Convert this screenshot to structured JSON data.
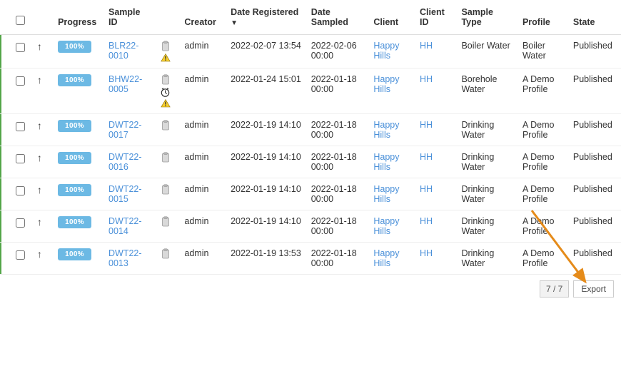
{
  "colors": {
    "accent_left": "#53a548",
    "link": "#4a90d9",
    "progress_bg": "#6cb9e4",
    "progress_fg": "#ffffff",
    "arrow_annotation": "#e58b1a",
    "border_light": "#eeeeee",
    "border_header": "#dddddd",
    "footer_box_bg": "#f2f2f2",
    "footer_box_border": "#cccccc"
  },
  "headers": {
    "progress": "Progress",
    "sample_id": "Sample ID",
    "creator": "Creator",
    "date_registered": "Date Registered",
    "sort_indicator": "▼",
    "date_sampled": "Date Sampled",
    "client": "Client",
    "client_id": "Client ID",
    "sample_type": "Sample Type",
    "profile": "Profile",
    "state": "State"
  },
  "rows": [
    {
      "progress": "100%",
      "sample_id": "BLR22-0010",
      "icons": [
        "clipboard",
        "warning"
      ],
      "creator": "admin",
      "date_registered": "2022-02-07 13:54",
      "date_sampled": "2022-02-06 00:00",
      "client": "Happy Hills",
      "client_id": "HH",
      "sample_type": "Boiler Water",
      "profile": "Boiler Water",
      "state": "Published"
    },
    {
      "progress": "100%",
      "sample_id": "BHW22-0005",
      "icons": [
        "clipboard",
        "clock",
        "warning"
      ],
      "creator": "admin",
      "date_registered": "2022-01-24 15:01",
      "date_sampled": "2022-01-18 00:00",
      "client": "Happy Hills",
      "client_id": "HH",
      "sample_type": "Borehole Water",
      "profile": "A Demo Profile",
      "state": "Published"
    },
    {
      "progress": "100%",
      "sample_id": "DWT22-0017",
      "icons": [
        "clipboard"
      ],
      "creator": "admin",
      "date_registered": "2022-01-19 14:10",
      "date_sampled": "2022-01-18 00:00",
      "client": "Happy Hills",
      "client_id": "HH",
      "sample_type": "Drinking Water",
      "profile": "A Demo Profile",
      "state": "Published"
    },
    {
      "progress": "100%",
      "sample_id": "DWT22-0016",
      "icons": [
        "clipboard"
      ],
      "creator": "admin",
      "date_registered": "2022-01-19 14:10",
      "date_sampled": "2022-01-18 00:00",
      "client": "Happy Hills",
      "client_id": "HH",
      "sample_type": "Drinking Water",
      "profile": "A Demo Profile",
      "state": "Published"
    },
    {
      "progress": "100%",
      "sample_id": "DWT22-0015",
      "icons": [
        "clipboard"
      ],
      "creator": "admin",
      "date_registered": "2022-01-19 14:10",
      "date_sampled": "2022-01-18 00:00",
      "client": "Happy Hills",
      "client_id": "HH",
      "sample_type": "Drinking Water",
      "profile": "A Demo Profile",
      "state": "Published"
    },
    {
      "progress": "100%",
      "sample_id": "DWT22-0014",
      "icons": [
        "clipboard"
      ],
      "creator": "admin",
      "date_registered": "2022-01-19 14:10",
      "date_sampled": "2022-01-18 00:00",
      "client": "Happy Hills",
      "client_id": "HH",
      "sample_type": "Drinking Water",
      "profile": "A Demo Profile",
      "state": "Published"
    },
    {
      "progress": "100%",
      "sample_id": "DWT22-0013",
      "icons": [
        "clipboard"
      ],
      "creator": "admin",
      "date_registered": "2022-01-19 13:53",
      "date_sampled": "2022-01-18 00:00",
      "client": "Happy Hills",
      "client_id": "HH",
      "sample_type": "Drinking Water",
      "profile": "A Demo Profile",
      "state": "Published"
    }
  ],
  "footer": {
    "count": "7 / 7",
    "export_label": "Export"
  },
  "annotation": {
    "arrow_color": "#e58b1a"
  }
}
